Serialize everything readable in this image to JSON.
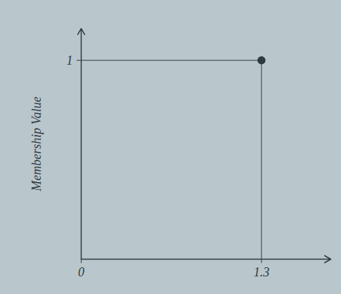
{
  "chart_data": {
    "type": "scatter",
    "ylabel": "Membership Value",
    "x": [
      1.3
    ],
    "values": [
      1
    ],
    "color": "#2f3a40",
    "marker": "circle",
    "xlim": [
      0,
      1.8
    ],
    "ylim": [
      0,
      1.16
    ],
    "xticks": [
      0,
      1.3
    ],
    "yticks": [
      1
    ],
    "grid": false
  }
}
